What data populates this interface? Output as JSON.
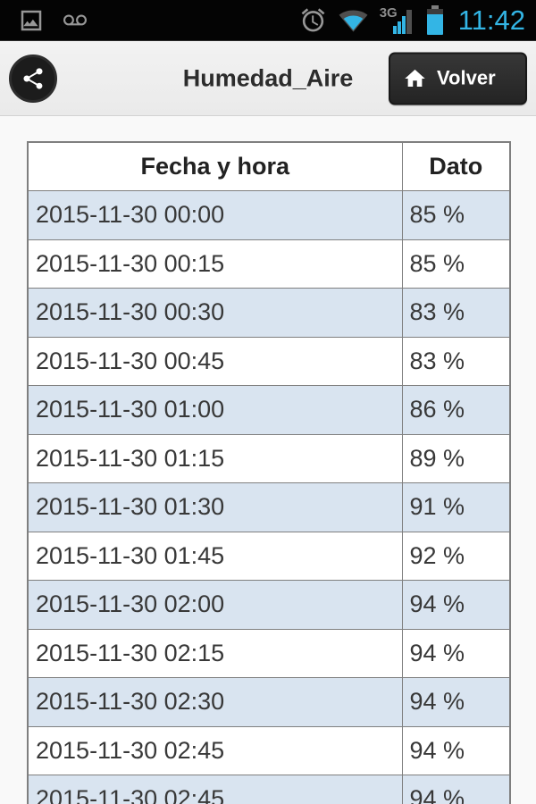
{
  "status_bar": {
    "time": "11:42",
    "network_label": "3G",
    "left_icons": [
      "gallery-notification-icon",
      "voicemail-notification-icon"
    ],
    "right_icons": [
      "alarm-icon",
      "wifi-icon",
      "signal-strength-icon",
      "battery-icon"
    ]
  },
  "header": {
    "title": "Humedad_Aire",
    "share_icon": "share-icon",
    "back_button": {
      "label": "Volver",
      "icon": "home-icon"
    }
  },
  "table": {
    "columns": [
      "Fecha y hora",
      "Dato"
    ],
    "rows": [
      [
        "2015-11-30 00:00",
        "85 %"
      ],
      [
        "2015-11-30 00:15",
        "85 %"
      ],
      [
        "2015-11-30 00:30",
        "83 %"
      ],
      [
        "2015-11-30 00:45",
        "83 %"
      ],
      [
        "2015-11-30 01:00",
        "86 %"
      ],
      [
        "2015-11-30 01:15",
        "89 %"
      ],
      [
        "2015-11-30 01:30",
        "91 %"
      ],
      [
        "2015-11-30 01:45",
        "92 %"
      ],
      [
        "2015-11-30 02:00",
        "94 %"
      ],
      [
        "2015-11-30 02:15",
        "94 %"
      ],
      [
        "2015-11-30 02:30",
        "94 %"
      ],
      [
        "2015-11-30 02:45",
        "94 %"
      ],
      [
        "2015-11-30 02:45",
        "94 %"
      ]
    ]
  },
  "colors": {
    "accent_blue": "#33b5e5",
    "row_alternate": "#d9e4f0",
    "table_border": "#7f7f7f",
    "header_background": "#efefef",
    "button_dark": "#2b2b2b",
    "status_bar_background": "#040404"
  }
}
